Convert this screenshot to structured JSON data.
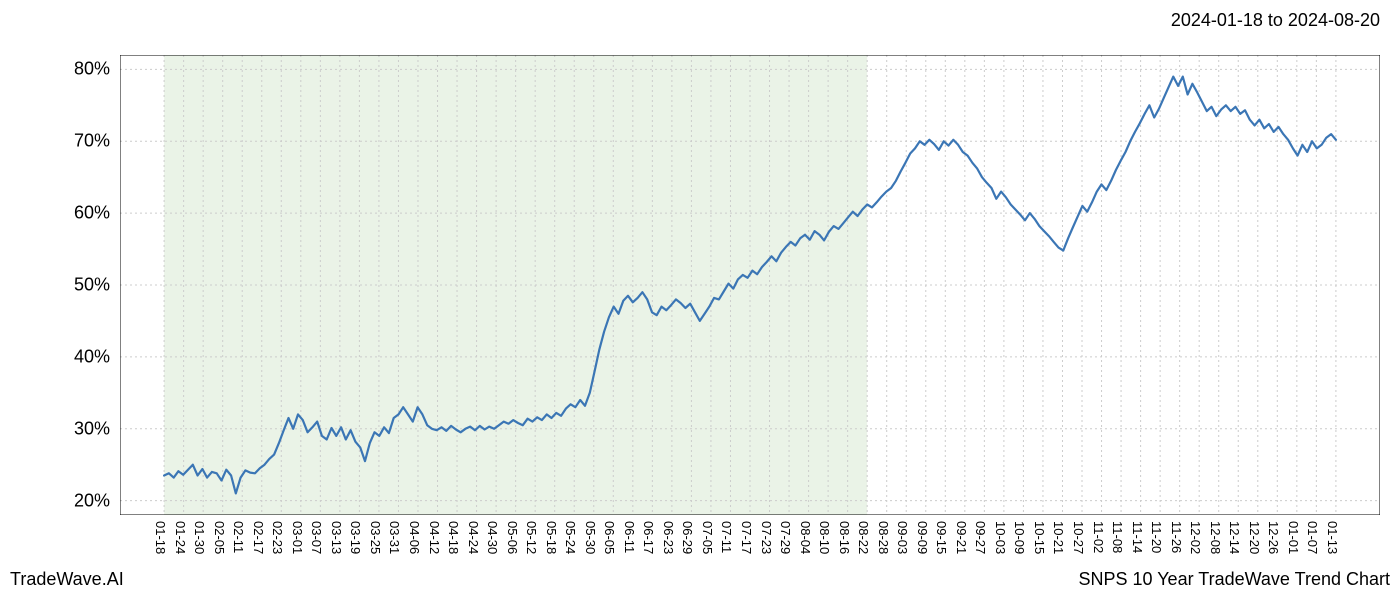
{
  "date_range_label": "2024-01-18 to 2024-08-20",
  "footer_left": "TradeWave.AI",
  "footer_right": "SNPS 10 Year TradeWave Trend Chart",
  "chart": {
    "type": "line",
    "background_color": "#ffffff",
    "highlight_fill": "#d9e9d3",
    "highlight_opacity": 0.55,
    "grid_color": "#cccccc",
    "grid_dash": "2,3",
    "axis_color": "#000000",
    "line_color": "#3b76b5",
    "line_width": 2.2,
    "ylim": [
      18,
      82
    ],
    "yticks": [
      20,
      30,
      40,
      50,
      60,
      70,
      80
    ],
    "ytick_labels": [
      "20%",
      "30%",
      "40%",
      "50%",
      "60%",
      "70%",
      "80%"
    ],
    "label_fontsize": 18,
    "xtick_fontsize": 13,
    "xticks": [
      "01-18",
      "01-24",
      "01-30",
      "02-05",
      "02-11",
      "02-17",
      "02-23",
      "03-01",
      "03-07",
      "03-13",
      "03-19",
      "03-25",
      "03-31",
      "04-06",
      "04-12",
      "04-18",
      "04-24",
      "04-30",
      "05-06",
      "05-12",
      "05-18",
      "05-24",
      "05-30",
      "06-05",
      "06-11",
      "06-17",
      "06-23",
      "06-29",
      "07-05",
      "07-11",
      "07-17",
      "07-23",
      "07-29",
      "08-04",
      "08-10",
      "08-16",
      "08-22",
      "08-28",
      "09-03",
      "09-09",
      "09-15",
      "09-21",
      "09-27",
      "10-03",
      "10-09",
      "10-15",
      "10-21",
      "10-27",
      "11-02",
      "11-08",
      "11-14",
      "11-20",
      "11-26",
      "12-02",
      "12-08",
      "12-14",
      "12-20",
      "12-26",
      "01-01",
      "01-07",
      "01-13"
    ],
    "highlight_end_tick_index": 36,
    "series": [
      23.5,
      23.8,
      23.2,
      24.1,
      23.6,
      24.3,
      25.0,
      23.5,
      24.4,
      23.2,
      24.0,
      23.8,
      22.8,
      24.3,
      23.5,
      21.0,
      23.2,
      24.2,
      23.9,
      23.8,
      24.5,
      25.0,
      25.8,
      26.4,
      28.0,
      29.8,
      31.5,
      30.0,
      32.0,
      31.2,
      29.5,
      30.2,
      31.0,
      29.0,
      28.5,
      30.1,
      29.0,
      30.2,
      28.5,
      29.8,
      28.2,
      27.4,
      25.5,
      28.0,
      29.5,
      29.0,
      30.2,
      29.4,
      31.5,
      32.0,
      33.0,
      32.0,
      31.0,
      33.0,
      32.0,
      30.5,
      30.0,
      29.8,
      30.2,
      29.7,
      30.4,
      29.9,
      29.5,
      30.0,
      30.3,
      29.8,
      30.4,
      29.9,
      30.3,
      30.0,
      30.5,
      31.0,
      30.7,
      31.2,
      30.8,
      30.5,
      31.4,
      31.0,
      31.6,
      31.2,
      32.0,
      31.5,
      32.2,
      31.8,
      32.8,
      33.4,
      33.0,
      34.0,
      33.2,
      35.0,
      38.0,
      41.0,
      43.5,
      45.5,
      47.0,
      46.0,
      47.8,
      48.5,
      47.6,
      48.2,
      49.0,
      48.0,
      46.2,
      45.8,
      47.0,
      46.5,
      47.2,
      48.0,
      47.5,
      46.8,
      47.4,
      46.2,
      45.0,
      46.0,
      47.0,
      48.2,
      48.0,
      49.1,
      50.2,
      49.5,
      50.8,
      51.4,
      51.0,
      52.0,
      51.5,
      52.5,
      53.2,
      54.0,
      53.3,
      54.5,
      55.3,
      56.0,
      55.5,
      56.5,
      57.0,
      56.3,
      57.5,
      57.0,
      56.2,
      57.4,
      58.2,
      57.8,
      58.6,
      59.4,
      60.2,
      59.6,
      60.5,
      61.2,
      60.8,
      61.5,
      62.3,
      63.0,
      63.5,
      64.5,
      65.8,
      67.0,
      68.3,
      69.0,
      70.0,
      69.5,
      70.2,
      69.6,
      68.8,
      70.0,
      69.4,
      70.2,
      69.5,
      68.5,
      68.0,
      67.0,
      66.2,
      65.0,
      64.2,
      63.5,
      62.0,
      63.0,
      62.2,
      61.2,
      60.5,
      59.8,
      59.0,
      60.0,
      59.2,
      58.2,
      57.5,
      56.8,
      56.0,
      55.2,
      54.8,
      56.5,
      58.0,
      59.5,
      61.0,
      60.2,
      61.5,
      63.0,
      64.0,
      63.2,
      64.5,
      66.0,
      67.3,
      68.5,
      70.0,
      71.3,
      72.5,
      73.8,
      75.0,
      73.3,
      74.5,
      76.0,
      77.5,
      79.0,
      77.7,
      79.0,
      76.5,
      78.0,
      76.8,
      75.5,
      74.2,
      74.8,
      73.5,
      74.4,
      75.0,
      74.2,
      74.8,
      73.8,
      74.3,
      73.0,
      72.2,
      73.0,
      71.8,
      72.4,
      71.3,
      72.0,
      71.0,
      70.2,
      69.0,
      68.0,
      69.5,
      68.5,
      70.0,
      69.0,
      69.5,
      70.5,
      71.0,
      70.2
    ]
  }
}
